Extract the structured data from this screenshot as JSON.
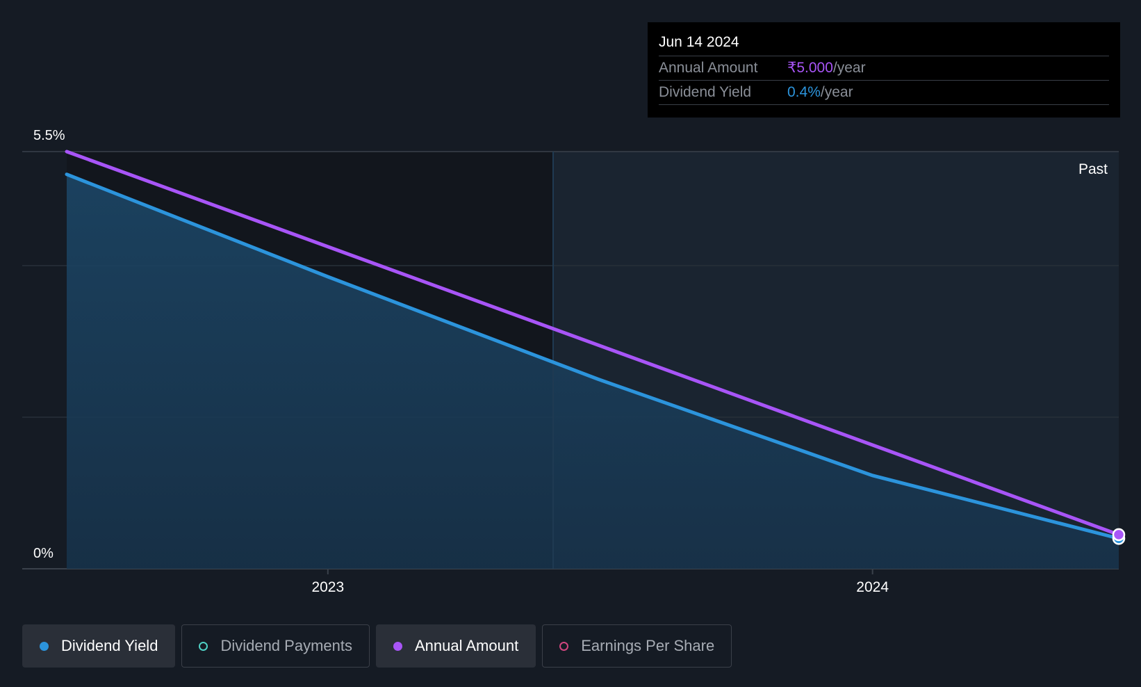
{
  "chart_data": {
    "type": "line",
    "y_top_label": "5.5%",
    "y_bottom_label": "0%",
    "ylim": [
      0,
      5.5
    ],
    "x_ticks": [
      "2023",
      "2024"
    ],
    "region_label": "Past",
    "series": [
      {
        "name": "Dividend Yield",
        "color": "#2c94dc",
        "filled": true,
        "points": [
          {
            "x": "2022-07-10",
            "y": 5.2
          },
          {
            "x": "2023-01-01",
            "y": 3.85
          },
          {
            "x": "2023-07-01",
            "y": 2.5
          },
          {
            "x": "2024-01-01",
            "y": 1.23
          },
          {
            "x": "2024-06-14",
            "y": 0.4
          }
        ]
      },
      {
        "name": "Annual Amount",
        "color": "#a855f7",
        "filled": false,
        "points": [
          {
            "x": "2022-07-10",
            "y": 5.5
          },
          {
            "x": "2024-06-14",
            "y": 0.45
          }
        ]
      }
    ]
  },
  "tooltip": {
    "date": "Jun 14 2024",
    "annual_amount_label": "Annual Amount",
    "annual_amount_value": "₹5.000",
    "dividend_yield_label": "Dividend Yield",
    "dividend_yield_value": "0.4%",
    "unit": "/year"
  },
  "legend": [
    {
      "label": "Dividend Yield",
      "color": "#2c94dc",
      "active": true,
      "filled": true
    },
    {
      "label": "Dividend Payments",
      "color": "#4fd1c5",
      "active": false,
      "filled": false
    },
    {
      "label": "Annual Amount",
      "color": "#a855f7",
      "active": true,
      "filled": true
    },
    {
      "label": "Earnings Per Share",
      "color": "#d0467f",
      "active": false,
      "filled": false
    }
  ]
}
